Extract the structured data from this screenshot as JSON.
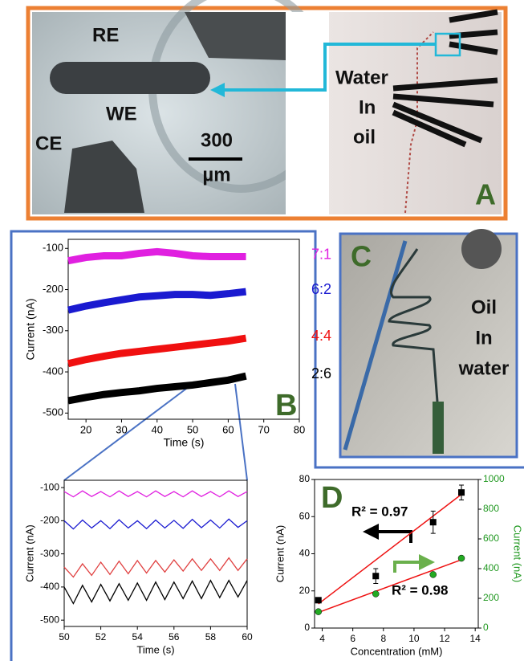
{
  "panel_a": {
    "letter": "A",
    "re": "RE",
    "we": "WE",
    "ce": "CE",
    "scale_value": "300",
    "scale_unit": "µm",
    "water": "Water",
    "in": "In",
    "oil": "oil"
  },
  "panel_c": {
    "letter": "C",
    "oil": "Oil",
    "in": "In",
    "water": "water"
  },
  "chart_data": [
    {
      "type": "line",
      "panel_label": "B",
      "xlabel": "Time (s)",
      "ylabel": "Current (nA)",
      "x": [
        15,
        20,
        25,
        30,
        35,
        40,
        45,
        50,
        55,
        60,
        65
      ],
      "xlim": [
        15,
        80
      ],
      "xticks": [
        20,
        30,
        40,
        50,
        60,
        70,
        80
      ],
      "ylim": [
        -515,
        -78
      ],
      "yticks": [
        -100,
        -200,
        -300,
        -400,
        -500
      ],
      "series": [
        {
          "name": "7:1",
          "color": "#e020e0",
          "values": [
            -130,
            -122,
            -118,
            -118,
            -112,
            -108,
            -112,
            -118,
            -120,
            -120,
            -120
          ]
        },
        {
          "name": "6:2",
          "color": "#1a1ad0",
          "values": [
            -250,
            -240,
            -232,
            -225,
            -218,
            -215,
            -212,
            -212,
            -214,
            -210,
            -205
          ]
        },
        {
          "name": "4:4",
          "color": "#f01010",
          "values": [
            -380,
            -370,
            -362,
            -355,
            -350,
            -345,
            -340,
            -335,
            -330,
            -325,
            -318
          ]
        },
        {
          "name": "2:6",
          "color": "#000000",
          "values": [
            -470,
            -462,
            -455,
            -450,
            -446,
            -440,
            -436,
            -432,
            -426,
            -420,
            -410
          ]
        }
      ]
    },
    {
      "type": "line",
      "xlabel": "Time (s)",
      "ylabel": "Current (nA)",
      "x": [
        50,
        50.5,
        51,
        51.5,
        52,
        52.5,
        53,
        53.5,
        54,
        54.5,
        55,
        55.5,
        56,
        56.5,
        57,
        57.5,
        58,
        58.5,
        59,
        59.5,
        60
      ],
      "xlim": [
        50,
        60
      ],
      "xticks": [
        50,
        52,
        54,
        56,
        58,
        60
      ],
      "ylim": [
        -519,
        -78
      ],
      "yticks": [
        -100,
        -200,
        -300,
        -400,
        -500
      ],
      "series": [
        {
          "color": "#e020e0",
          "values": [
            -112,
            -128,
            -110,
            -127,
            -112,
            -128,
            -110,
            -127,
            -112,
            -128,
            -110,
            -127,
            -112,
            -128,
            -110,
            -127,
            -112,
            -128,
            -110,
            -127,
            -112
          ]
        },
        {
          "color": "#1a1ad0",
          "values": [
            -200,
            -225,
            -198,
            -222,
            -200,
            -224,
            -197,
            -222,
            -200,
            -224,
            -198,
            -222,
            -199,
            -223,
            -196,
            -221,
            -198,
            -222,
            -195,
            -220,
            -200
          ]
        },
        {
          "color": "#e04040",
          "values": [
            -340,
            -370,
            -330,
            -365,
            -325,
            -362,
            -322,
            -360,
            -320,
            -358,
            -320,
            -355,
            -318,
            -352,
            -315,
            -350,
            -315,
            -350,
            -312,
            -350,
            -315
          ]
        },
        {
          "color": "#000000",
          "values": [
            -400,
            -450,
            -395,
            -445,
            -392,
            -442,
            -390,
            -440,
            -388,
            -440,
            -385,
            -438,
            -385,
            -435,
            -382,
            -435,
            -380,
            -432,
            -380,
            -430,
            -380
          ]
        }
      ]
    },
    {
      "type": "scatter",
      "panel_label": "D",
      "xlabel": "Concentration (mM)",
      "ylabel": "Current (nA)",
      "y2label": "Current (nA)",
      "xlim": [
        3.5,
        14.2
      ],
      "xticks": [
        4,
        6,
        8,
        10,
        12,
        14
      ],
      "ylim": [
        0,
        80
      ],
      "yticks": [
        0,
        20,
        40,
        60,
        80
      ],
      "y2lim": [
        0,
        1000
      ],
      "y2ticks": [
        0,
        200,
        400,
        600,
        800,
        1000
      ],
      "series": [
        {
          "color": "#000000",
          "marker": "square",
          "x": [
            3.75,
            7.5,
            11.25,
            13.1
          ],
          "values": [
            15,
            28,
            57,
            73
          ],
          "errors": [
            1,
            4,
            6,
            4
          ]
        },
        {
          "color": "#22aa22",
          "marker": "circle",
          "axis": "y2",
          "x": [
            3.75,
            7.5,
            11.25,
            13.1
          ],
          "values": [
            110,
            230,
            360,
            470
          ]
        }
      ],
      "fits": [
        {
          "color": "#ee1111",
          "x": [
            3.75,
            13.1
          ],
          "values": [
            13,
            72
          ]
        },
        {
          "color": "#ee1111",
          "axis": "y2",
          "x": [
            3.75,
            13.1
          ],
          "values": [
            105,
            460
          ]
        }
      ],
      "annotations": [
        "R² = 0.97",
        "R² = 0.98"
      ]
    }
  ]
}
